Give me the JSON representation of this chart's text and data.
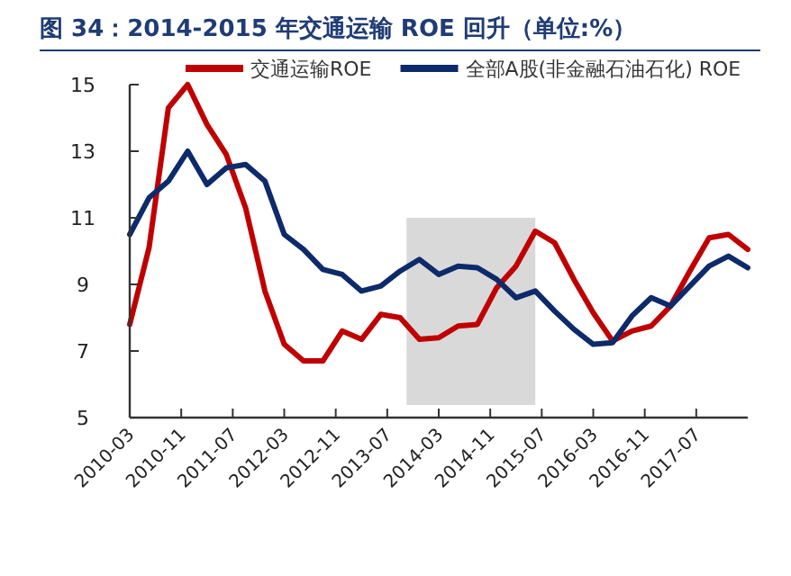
{
  "chart_data": {
    "type": "line",
    "title": "图 34：2014-2015 年交通运输 ROE 回升（单位:%）",
    "x": [
      "2010-03",
      "2010-06",
      "2010-09",
      "2010-12",
      "2011-03",
      "2011-06",
      "2011-09",
      "2011-12",
      "2012-03",
      "2012-06",
      "2012-09",
      "2012-12",
      "2013-03",
      "2013-06",
      "2013-09",
      "2013-12",
      "2014-03",
      "2014-06",
      "2014-09",
      "2014-12",
      "2015-03",
      "2015-06",
      "2015-09",
      "2015-12",
      "2016-03",
      "2016-06",
      "2016-09",
      "2016-12",
      "2017-03",
      "2017-06",
      "2017-09",
      "2017-12",
      "2018-03"
    ],
    "series": [
      {
        "name": "交通运输ROE",
        "color": "#c00000",
        "values": [
          7.8,
          10.1,
          14.3,
          15.0,
          13.8,
          12.9,
          11.3,
          8.8,
          7.2,
          6.7,
          6.7,
          7.6,
          7.35,
          8.1,
          8.0,
          7.35,
          7.4,
          7.75,
          7.8,
          8.9,
          9.55,
          10.6,
          10.25,
          9.15,
          8.15,
          7.3,
          7.6,
          7.75,
          8.35,
          9.4,
          10.4,
          10.5,
          10.05
        ]
      },
      {
        "name": "全部A股(非金融石油石化) ROE",
        "color": "#0d2a6b",
        "values": [
          10.5,
          11.6,
          12.1,
          13.0,
          12.0,
          12.5,
          12.6,
          12.1,
          10.5,
          10.05,
          9.45,
          9.3,
          8.8,
          8.95,
          9.4,
          9.75,
          9.3,
          9.55,
          9.5,
          9.15,
          8.6,
          8.8,
          8.2,
          7.65,
          7.2,
          7.25,
          8.05,
          8.6,
          8.35,
          8.95,
          9.55,
          9.85,
          9.5
        ]
      }
    ],
    "xlim": [
      "2010-03",
      "2018-03"
    ],
    "xticks": [
      "2010-03",
      "2010-11",
      "2011-07",
      "2012-03",
      "2012-11",
      "2013-07",
      "2014-03",
      "2014-11",
      "2015-07",
      "2016-03",
      "2016-11",
      "2017-07"
    ],
    "ylim": [
      5,
      15
    ],
    "yticks": [
      5,
      7,
      9,
      11,
      13,
      15
    ],
    "bands": [
      {
        "axis": "x",
        "from": "2013-10",
        "to": "2015-06",
        "color": "#d9d9d9"
      }
    ],
    "grid": false,
    "legend": "top",
    "line_style": "solid",
    "marker": "none"
  }
}
